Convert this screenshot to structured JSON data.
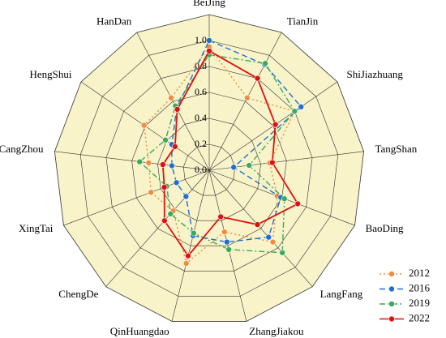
{
  "chart_data": {
    "type": "radar",
    "categories": [
      "BeiJing",
      "TianJin",
      "ShiJiazhuang",
      "TangShan",
      "BaoDing",
      "LangFang",
      "ZhangJiakou",
      "QinHuangdao",
      "ChengDe",
      "XingTai",
      "CangZhou",
      "HengShui",
      "HanDan"
    ],
    "rlim": [
      0,
      1.2
    ],
    "rticks": [
      {
        "value": 0,
        "label": "0.0"
      },
      0.2,
      0.4,
      0.6,
      0.8,
      {
        "value": 1,
        "label": "1.0"
      }
    ],
    "grid": true,
    "legend": "lower right",
    "series": [
      {
        "name": "2012",
        "color": "#f08c3c",
        "dash": "dotted",
        "values": [
          0.95,
          0.63,
          0.8,
          0.47,
          0.56,
          0.74,
          0.49,
          0.74,
          0.42,
          0.48,
          0.47,
          0.61,
          0.63
        ]
      },
      {
        "name": "2016",
        "color": "#1f6fd0",
        "dash": "dashed",
        "values": [
          1.0,
          0.92,
          0.86,
          0.19,
          0.59,
          0.69,
          0.57,
          0.52,
          0.27,
          0.27,
          0.29,
          0.35,
          0.54
        ]
      },
      {
        "name": "2019",
        "color": "#3aaa5a",
        "dash": "dashdot",
        "values": [
          0.89,
          0.93,
          0.8,
          0.31,
          0.62,
          0.85,
          0.63,
          0.5,
          0.45,
          0.35,
          0.54,
          0.41,
          0.56
        ]
      },
      {
        "name": "2022",
        "color": "#e01010",
        "dash": "solid",
        "values": [
          0.92,
          0.8,
          0.62,
          0.49,
          0.73,
          0.56,
          0.37,
          0.68,
          0.52,
          0.37,
          0.36,
          0.32,
          0.53
        ]
      }
    ]
  }
}
